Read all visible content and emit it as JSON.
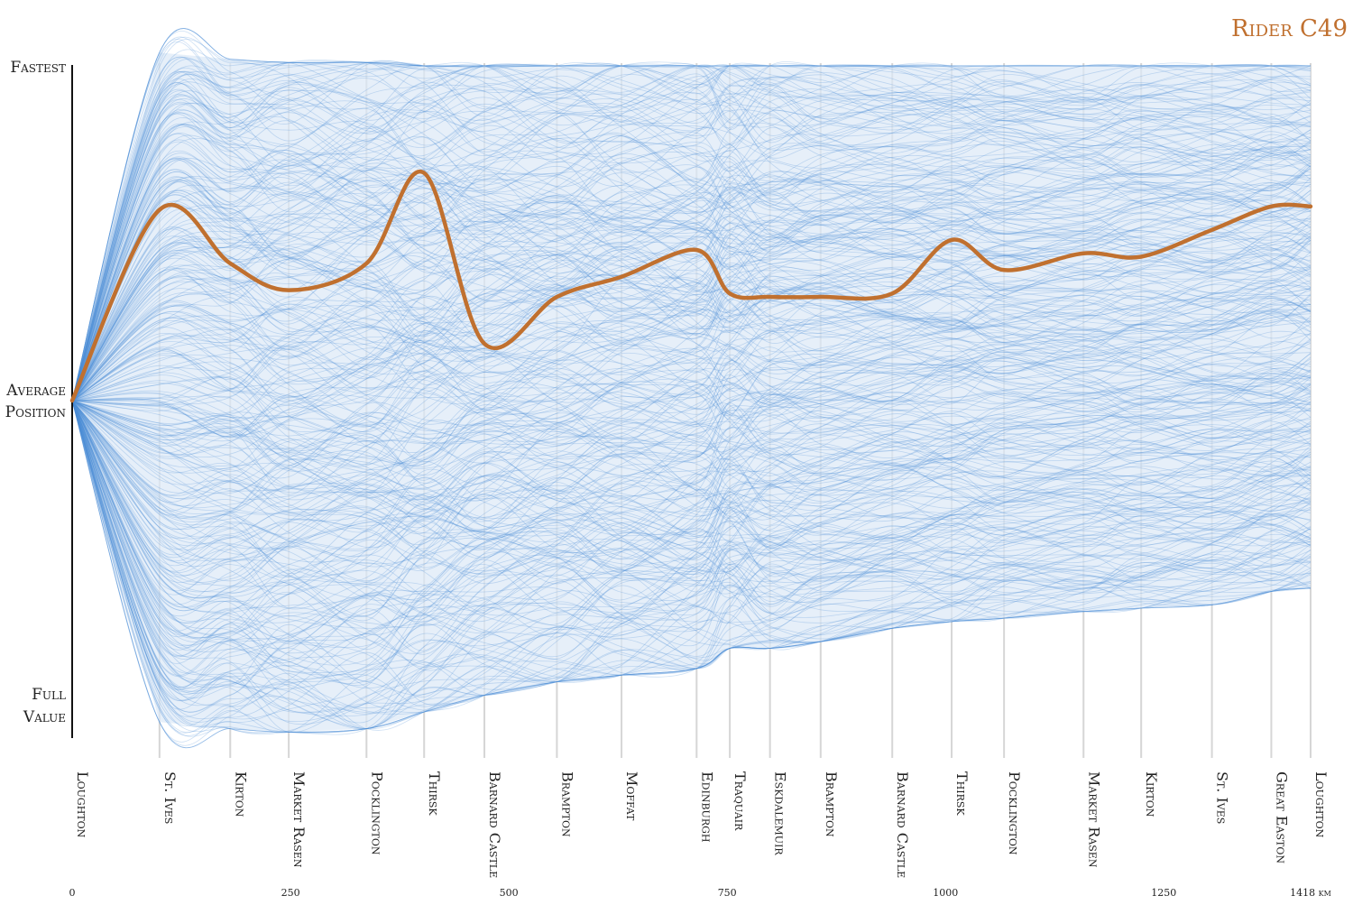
{
  "chart_data": {
    "type": "line",
    "title": "Rider C49",
    "title_color": "#c0702f",
    "highlight_color": "#c0702f",
    "background_color": "#a9c7ea",
    "y_labels": {
      "top": "Fastest",
      "middle_1": "Average",
      "middle_2": "Position",
      "bottom_1": "Full",
      "bottom_2": "Value"
    },
    "y_range": [
      -1,
      1
    ],
    "x_unit_label": "1418 km",
    "controls": [
      {
        "name": "Loughton",
        "km": 0
      },
      {
        "name": "St. Ives",
        "km": 100
      },
      {
        "name": "Kirton",
        "km": 181
      },
      {
        "name": "Market Rasen",
        "km": 248
      },
      {
        "name": "Pocklington",
        "km": 337
      },
      {
        "name": "Thirsk",
        "km": 403
      },
      {
        "name": "Barnard Castle",
        "km": 472
      },
      {
        "name": "Brampton",
        "km": 555
      },
      {
        "name": "Moffat",
        "km": 629
      },
      {
        "name": "Edinburgh",
        "km": 715
      },
      {
        "name": "Traquair",
        "km": 753
      },
      {
        "name": "Eskdalemuir",
        "km": 799
      },
      {
        "name": "Brampton",
        "km": 857
      },
      {
        "name": "Barnard Castle",
        "km": 939
      },
      {
        "name": "Thirsk",
        "km": 1007
      },
      {
        "name": "Pocklington",
        "km": 1067
      },
      {
        "name": "Market Rasen",
        "km": 1158
      },
      {
        "name": "Kirton",
        "km": 1224
      },
      {
        "name": "St. Ives",
        "km": 1305
      },
      {
        "name": "Great Easton",
        "km": 1373
      },
      {
        "name": "Loughton",
        "km": 1418
      }
    ],
    "x_ticks": [
      {
        "label": "0",
        "km": 0
      },
      {
        "label": "250",
        "km": 250
      },
      {
        "label": "500",
        "km": 500
      },
      {
        "label": "750",
        "km": 750
      },
      {
        "label": "1000",
        "km": 1000
      },
      {
        "label": "1250",
        "km": 1250
      },
      {
        "label": "1418 km",
        "km": 1418
      }
    ],
    "series": [
      {
        "name": "Rider C49",
        "values": [
          0,
          0.57,
          0.41,
          0.33,
          0.41,
          0.68,
          0.17,
          0.31,
          0.37,
          0.45,
          0.32,
          0.31,
          0.31,
          0.32,
          0.48,
          0.39,
          0.44,
          0.43,
          0.51,
          0.58,
          0.58
        ]
      }
    ],
    "field": {
      "upper_bound": [
        0,
        1.04,
        1.02,
        1.01,
        1.01,
        1.0,
        1.0,
        1.0,
        1.0,
        1.0,
        1.0,
        1.0,
        1.0,
        1.0,
        1.0,
        1.0,
        1.0,
        1.0,
        1.0,
        1.0,
        1.0
      ],
      "lower_bound": [
        0,
        -0.96,
        -0.98,
        -0.99,
        -0.98,
        -0.93,
        -0.88,
        -0.84,
        -0.82,
        -0.8,
        -0.74,
        -0.74,
        -0.72,
        -0.68,
        -0.66,
        -0.65,
        -0.63,
        -0.62,
        -0.61,
        -0.57,
        -0.56
      ]
    }
  }
}
